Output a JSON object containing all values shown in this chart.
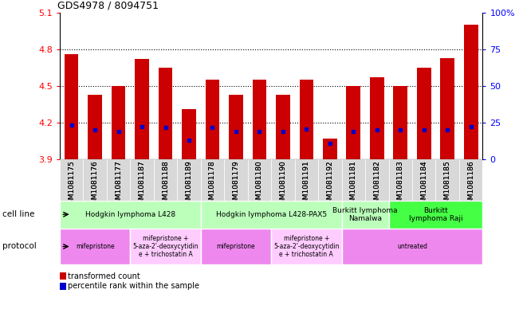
{
  "title": "GDS4978 / 8094751",
  "samples": [
    "GSM1081175",
    "GSM1081176",
    "GSM1081177",
    "GSM1081187",
    "GSM1081188",
    "GSM1081189",
    "GSM1081178",
    "GSM1081179",
    "GSM1081180",
    "GSM1081190",
    "GSM1081191",
    "GSM1081192",
    "GSM1081181",
    "GSM1081182",
    "GSM1081183",
    "GSM1081184",
    "GSM1081185",
    "GSM1081186"
  ],
  "transformed_counts": [
    4.76,
    4.43,
    4.5,
    4.72,
    4.65,
    4.31,
    4.55,
    4.43,
    4.55,
    4.43,
    4.55,
    4.07,
    4.5,
    4.57,
    4.5,
    4.65,
    4.73,
    5.0
  ],
  "percentile_values": [
    4.18,
    4.14,
    4.13,
    4.17,
    4.16,
    4.06,
    4.16,
    4.13,
    4.13,
    4.13,
    4.15,
    4.03,
    4.13,
    4.14,
    4.14,
    4.14,
    4.14,
    4.17
  ],
  "ymin": 3.9,
  "ymax": 5.1,
  "yticks": [
    3.9,
    4.2,
    4.5,
    4.8,
    5.1
  ],
  "right_yticks": [
    0,
    25,
    50,
    75,
    100
  ],
  "right_ytick_labels": [
    "0",
    "25",
    "50",
    "75",
    "100%"
  ],
  "bar_color": "#cc0000",
  "dot_color": "#0000cc",
  "bar_bottom": 3.9,
  "cell_line_groups": [
    {
      "label": "Hodgkin lymphoma L428",
      "start": 0,
      "end": 6,
      "color": "#bbffbb"
    },
    {
      "label": "Hodgkin lymphoma L428-PAX5",
      "start": 6,
      "end": 12,
      "color": "#bbffbb"
    },
    {
      "label": "Burkitt lymphoma\nNamalwa",
      "start": 12,
      "end": 14,
      "color": "#bbffbb"
    },
    {
      "label": "Burkitt\nlymphoma Raji",
      "start": 14,
      "end": 18,
      "color": "#44ff44"
    }
  ],
  "protocol_groups": [
    {
      "label": "mifepristone",
      "start": 0,
      "end": 3,
      "color": "#ee88ee"
    },
    {
      "label": "mifepristone +\n5-aza-2'-deoxycytidin\ne + trichostatin A",
      "start": 3,
      "end": 6,
      "color": "#ffccff"
    },
    {
      "label": "mifepristone",
      "start": 6,
      "end": 9,
      "color": "#ee88ee"
    },
    {
      "label": "mifepristone +\n5-aza-2'-deoxycytidin\ne + trichostatin A",
      "start": 9,
      "end": 12,
      "color": "#ffccff"
    },
    {
      "label": "untreated",
      "start": 12,
      "end": 18,
      "color": "#ee88ee"
    }
  ],
  "cell_line_label": "cell line",
  "protocol_label": "protocol",
  "legend_red": "transformed count",
  "legend_blue": "percentile rank within the sample",
  "grid_lines": [
    4.2,
    4.5,
    4.8
  ]
}
